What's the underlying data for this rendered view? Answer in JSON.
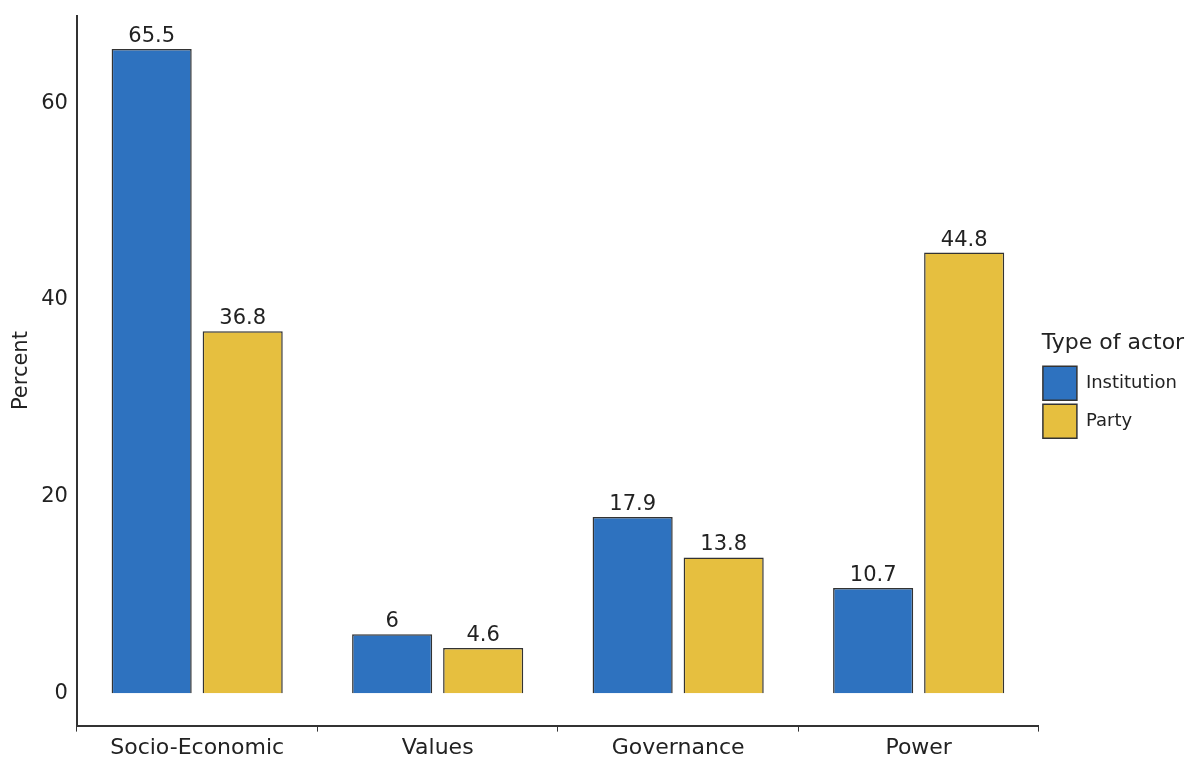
{
  "chart_data": {
    "type": "bar",
    "ylabel": "Percent",
    "legend_title": "Type of actor",
    "categories": [
      "Socio-Economic",
      "Values",
      "Governance",
      "Power"
    ],
    "series": [
      {
        "name": "Institution",
        "color": "#2e72bf",
        "values": [
          65.5,
          6,
          17.9,
          10.7
        ]
      },
      {
        "name": "Party",
        "color": "#e6bf3f",
        "values": [
          36.8,
          4.6,
          13.8,
          44.8
        ]
      }
    ],
    "ylim": [
      -3.3,
      68.9
    ],
    "yticks": [
      0,
      20,
      40,
      60
    ],
    "grid": false,
    "legend": "right",
    "data_labels": true
  }
}
